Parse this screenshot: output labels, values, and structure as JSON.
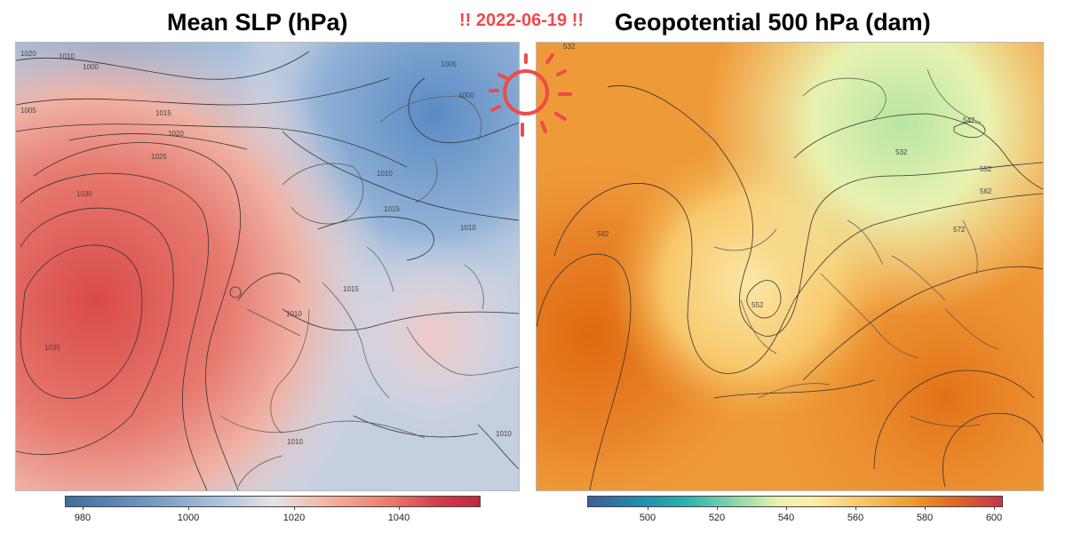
{
  "date_label": "!! 2022-06-19 !!",
  "left_panel": {
    "title": "Mean SLP (hPa)",
    "colorbar_ticks": [
      "980",
      "1000",
      "1020",
      "1040"
    ],
    "contour_labels": [
      "1020",
      "1010",
      "1000",
      "1005",
      "1015",
      "1020",
      "1025",
      "1030",
      "1035",
      "1010",
      "1015",
      "1005",
      "1000",
      "1010",
      "1015",
      "1010",
      "1010",
      "1010"
    ]
  },
  "right_panel": {
    "title": "Geopotential 500 hPa (dam)",
    "colorbar_ticks": [
      "500",
      "520",
      "540",
      "560",
      "580",
      "600"
    ],
    "contour_labels": [
      "532",
      "542",
      "532",
      "552",
      "562",
      "582",
      "552",
      "572"
    ]
  },
  "colors": {
    "date_label": "#ef4a4a",
    "sun_icon": "#ef4a4a",
    "slp_high": "#d94a4a",
    "slp_low": "#5b8bc4",
    "z500_high": "#e06a10",
    "z500_low": "#b7e6a2"
  },
  "icons": {
    "sun": "sun-icon"
  }
}
